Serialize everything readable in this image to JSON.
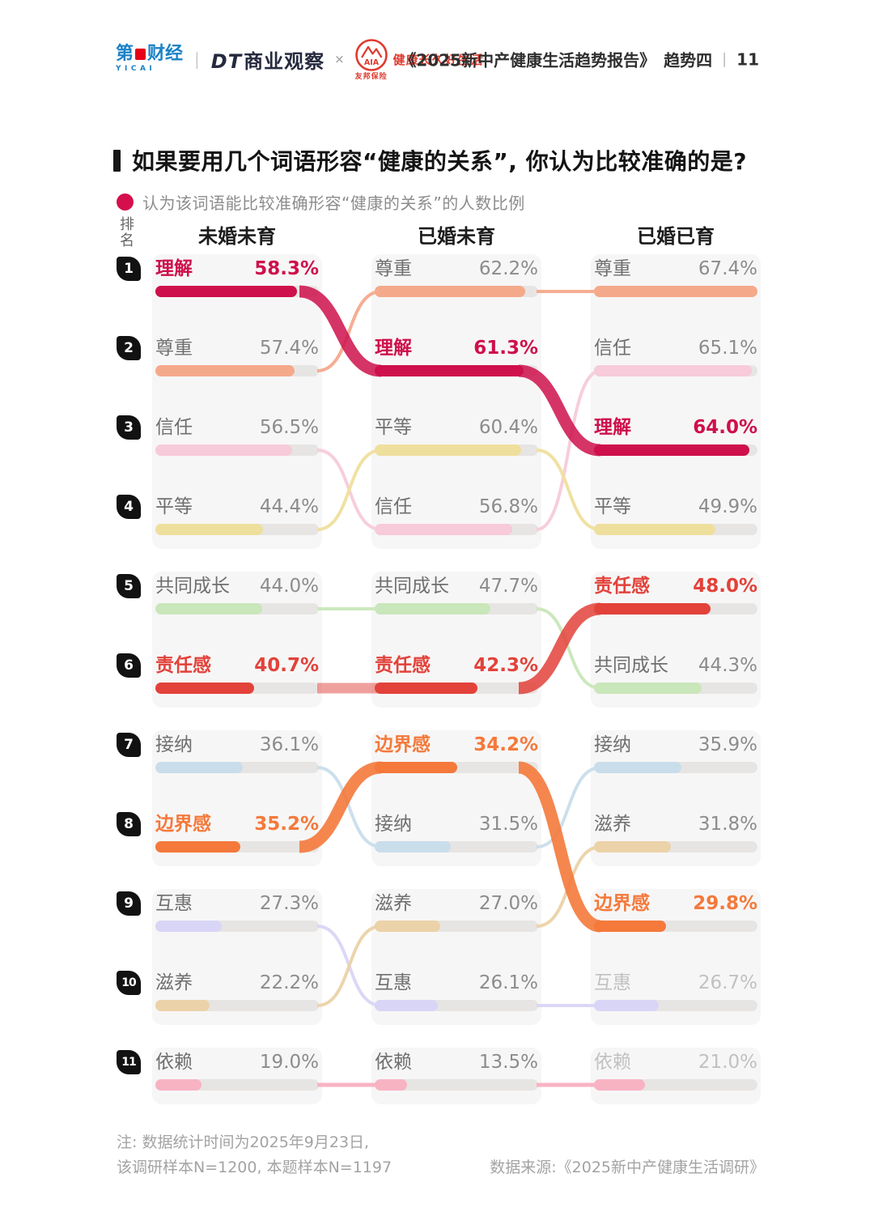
{
  "header": {
    "yicai": {
      "part1": "第",
      "part2": "财经",
      "sub": "YICAI"
    },
    "divider": "|",
    "dt_logo_dt": "DT",
    "dt_logo_rest": "商业观察",
    "cross": "×",
    "aia_name": "AIA",
    "aia_slogan": "健康长久好生活",
    "aia_caption": "友邦保险",
    "report_title": "《2025新中产健康生活趋势报告》",
    "trend_label": "趋势四",
    "page_divider": "|",
    "page_no": "11"
  },
  "title": "如果要用几个词语形容“健康的关系”, 你认为比较准确的是?",
  "legend_text": "认为该词语能比较准确形容“健康的关系”的人数比例",
  "rank_header": "排名",
  "notes": {
    "line1": "注: 数据统计时间为2025年9月23日,",
    "line2": "该调研样本N=1200, 本题样本N=1197",
    "source": "数据来源:《2025新中产健康生活调研》"
  },
  "colors": {
    "accent": "#D50F4C",
    "track": "#E7E5E3",
    "card": "#F7F6F6",
    "word_normal": "#6F6F6F",
    "pct_normal": "#8C8C8C",
    "muted": "#C2C1C1",
    "badge": "#121212",
    "words": {
      "理解": "#CE104C",
      "尊重": "#F5A98B",
      "信任": "#F7CBD9",
      "平等": "#EFDF9D",
      "共同成长": "#C9E7BA",
      "责任感": "#E2423A",
      "接纳": "#C9DDEB",
      "边界感": "#F4793B",
      "互惠": "#D9D5F6",
      "滋养": "#EBD2A8",
      "依赖": "#F8B3C3"
    }
  },
  "chart_data": {
    "type": "bump-ranking",
    "unit": "%",
    "scale_max": 67.4,
    "ranks": [
      1,
      2,
      3,
      4,
      5,
      6,
      7,
      8,
      9,
      10,
      11
    ],
    "columns": [
      {
        "label": "未婚未育",
        "items": [
          {
            "rank": 1,
            "word": "理解",
            "value": 58.3,
            "highlight": true
          },
          {
            "rank": 2,
            "word": "尊重",
            "value": 57.4
          },
          {
            "rank": 3,
            "word": "信任",
            "value": 56.5
          },
          {
            "rank": 4,
            "word": "平等",
            "value": 44.4
          },
          {
            "rank": 5,
            "word": "共同成长",
            "value": 44.0
          },
          {
            "rank": 6,
            "word": "责任感",
            "value": 40.7,
            "highlight": true
          },
          {
            "rank": 7,
            "word": "接纳",
            "value": 36.1
          },
          {
            "rank": 8,
            "word": "边界感",
            "value": 35.2,
            "highlight": true
          },
          {
            "rank": 9,
            "word": "互惠",
            "value": 27.3
          },
          {
            "rank": 10,
            "word": "滋养",
            "value": 22.2
          },
          {
            "rank": 11,
            "word": "依赖",
            "value": 19.0
          }
        ]
      },
      {
        "label": "已婚未育",
        "items": [
          {
            "rank": 1,
            "word": "尊重",
            "value": 62.2
          },
          {
            "rank": 2,
            "word": "理解",
            "value": 61.3,
            "highlight": true
          },
          {
            "rank": 3,
            "word": "平等",
            "value": 60.4
          },
          {
            "rank": 4,
            "word": "信任",
            "value": 56.8
          },
          {
            "rank": 5,
            "word": "共同成长",
            "value": 47.7
          },
          {
            "rank": 6,
            "word": "责任感",
            "value": 42.3,
            "highlight": true
          },
          {
            "rank": 7,
            "word": "边界感",
            "value": 34.2,
            "highlight": true
          },
          {
            "rank": 8,
            "word": "接纳",
            "value": 31.5
          },
          {
            "rank": 9,
            "word": "滋养",
            "value": 27.0
          },
          {
            "rank": 10,
            "word": "互惠",
            "value": 26.1
          },
          {
            "rank": 11,
            "word": "依赖",
            "value": 13.5
          }
        ]
      },
      {
        "label": "已婚已育",
        "items": [
          {
            "rank": 1,
            "word": "尊重",
            "value": 67.4
          },
          {
            "rank": 2,
            "word": "信任",
            "value": 65.1
          },
          {
            "rank": 3,
            "word": "理解",
            "value": 64.0,
            "highlight": true
          },
          {
            "rank": 4,
            "word": "平等",
            "value": 49.9
          },
          {
            "rank": 5,
            "word": "责任感",
            "value": 48.0,
            "highlight": true
          },
          {
            "rank": 6,
            "word": "共同成长",
            "value": 44.3
          },
          {
            "rank": 7,
            "word": "接纳",
            "value": 35.9
          },
          {
            "rank": 8,
            "word": "滋养",
            "value": 31.8
          },
          {
            "rank": 9,
            "word": "边界感",
            "value": 29.8,
            "highlight": true
          },
          {
            "rank": 10,
            "word": "互惠",
            "value": 26.7,
            "muted": true
          },
          {
            "rank": 11,
            "word": "依赖",
            "value": 21.0,
            "muted": true
          }
        ]
      }
    ],
    "links": [
      {
        "word": "尊重",
        "from": [
          0,
          2
        ],
        "to": [
          1,
          1
        ],
        "width": 4,
        "opacity": 0.95
      },
      {
        "word": "尊重",
        "from": [
          1,
          1
        ],
        "to": [
          2,
          1
        ],
        "width": 4,
        "opacity": 0.95
      },
      {
        "word": "信任",
        "from": [
          0,
          3
        ],
        "to": [
          1,
          4
        ],
        "width": 4,
        "opacity": 0.95
      },
      {
        "word": "信任",
        "from": [
          1,
          4
        ],
        "to": [
          2,
          2
        ],
        "width": 4,
        "opacity": 0.95
      },
      {
        "word": "平等",
        "from": [
          0,
          4
        ],
        "to": [
          1,
          3
        ],
        "width": 4,
        "opacity": 0.95
      },
      {
        "word": "平等",
        "from": [
          1,
          3
        ],
        "to": [
          2,
          4
        ],
        "width": 4,
        "opacity": 0.95
      },
      {
        "word": "共同成长",
        "from": [
          0,
          5
        ],
        "to": [
          1,
          5
        ],
        "width": 4,
        "opacity": 0.95
      },
      {
        "word": "共同成长",
        "from": [
          1,
          5
        ],
        "to": [
          2,
          6
        ],
        "width": 4,
        "opacity": 0.95
      },
      {
        "word": "接纳",
        "from": [
          0,
          7
        ],
        "to": [
          1,
          8
        ],
        "width": 4,
        "opacity": 0.95
      },
      {
        "word": "接纳",
        "from": [
          1,
          8
        ],
        "to": [
          2,
          7
        ],
        "width": 4,
        "opacity": 0.95
      },
      {
        "word": "互惠",
        "from": [
          0,
          9
        ],
        "to": [
          1,
          10
        ],
        "width": 4,
        "opacity": 0.95
      },
      {
        "word": "互惠",
        "from": [
          1,
          10
        ],
        "to": [
          2,
          10
        ],
        "width": 4,
        "opacity": 0.95
      },
      {
        "word": "滋养",
        "from": [
          0,
          10
        ],
        "to": [
          1,
          9
        ],
        "width": 4,
        "opacity": 0.95
      },
      {
        "word": "滋养",
        "from": [
          1,
          9
        ],
        "to": [
          2,
          8
        ],
        "width": 4,
        "opacity": 0.95
      },
      {
        "word": "依赖",
        "from": [
          0,
          11
        ],
        "to": [
          1,
          11
        ],
        "width": 5,
        "opacity": 1
      },
      {
        "word": "依赖",
        "from": [
          1,
          11
        ],
        "to": [
          2,
          11
        ],
        "width": 5,
        "opacity": 1
      },
      {
        "word": "责任感",
        "from": [
          0,
          6
        ],
        "to": [
          1,
          6
        ],
        "width": 13,
        "opacity": 0.5
      },
      {
        "word": "理解",
        "from": [
          0,
          1
        ],
        "to": [
          1,
          2
        ],
        "width": 15,
        "opacity": 0.85
      },
      {
        "word": "理解",
        "from": [
          1,
          2
        ],
        "to": [
          2,
          3
        ],
        "width": 15,
        "opacity": 0.85
      },
      {
        "word": "责任感",
        "from": [
          1,
          6
        ],
        "to": [
          2,
          5
        ],
        "width": 15,
        "opacity": 0.85
      },
      {
        "word": "边界感",
        "from": [
          0,
          8
        ],
        "to": [
          1,
          7
        ],
        "width": 15,
        "opacity": 0.9
      },
      {
        "word": "边界感",
        "from": [
          1,
          7
        ],
        "to": [
          2,
          9
        ],
        "width": 15,
        "opacity": 0.9
      }
    ]
  }
}
